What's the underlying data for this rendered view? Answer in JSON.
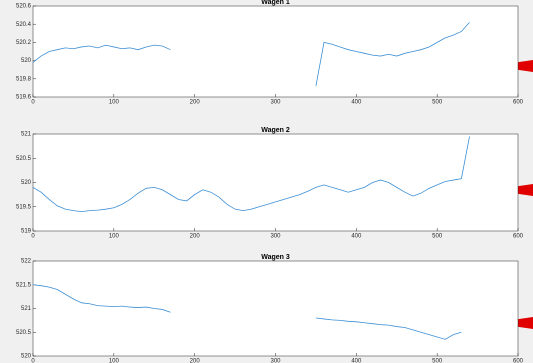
{
  "chart_data": [
    {
      "type": "line",
      "title": "Wagen 1",
      "x": [
        0,
        10,
        20,
        30,
        40,
        50,
        60,
        70,
        80,
        90,
        100,
        110,
        120,
        130,
        140,
        150,
        160,
        170,
        180,
        190,
        200,
        210,
        220,
        230,
        240,
        250,
        260,
        270,
        280,
        290,
        300,
        310,
        320,
        330,
        340,
        350,
        360,
        370,
        380,
        390,
        400,
        410,
        420,
        430,
        440,
        450,
        460,
        470,
        480,
        490,
        500,
        510,
        520,
        530,
        540
      ],
      "series": [
        {
          "color": "#3d8fd4",
          "values": [
            519.98,
            520.05,
            520.1,
            520.12,
            520.14,
            520.13,
            520.15,
            520.16,
            520.14,
            520.17,
            520.15,
            520.13,
            520.14,
            520.12,
            520.15,
            520.17,
            520.16,
            520.12,
            null,
            null,
            null,
            null,
            null,
            null,
            null,
            null,
            null,
            null,
            null,
            null,
            null,
            null,
            null,
            null,
            null,
            519.72,
            520.2,
            520.18,
            520.15,
            520.12,
            520.1,
            520.08,
            520.06,
            520.05,
            520.07,
            520.05,
            520.08,
            520.1,
            520.12,
            520.15,
            520.2,
            520.25,
            520.28,
            520.32,
            520.42
          ]
        }
      ],
      "xlim": [
        0,
        600
      ],
      "xticks": [
        0,
        100,
        200,
        300,
        400,
        500,
        600
      ],
      "ylim": [
        519.6,
        520.6
      ],
      "yticks": [
        519.6,
        519.8,
        520,
        520.2,
        520.4,
        520.6
      ]
    },
    {
      "type": "line",
      "title": "Wagen 2",
      "x": [
        0,
        10,
        20,
        30,
        40,
        50,
        60,
        70,
        80,
        90,
        100,
        110,
        120,
        130,
        140,
        150,
        160,
        170,
        180,
        190,
        200,
        210,
        220,
        230,
        240,
        250,
        260,
        270,
        280,
        290,
        300,
        310,
        320,
        330,
        340,
        350,
        360,
        370,
        380,
        390,
        400,
        410,
        420,
        430,
        440,
        450,
        460,
        470,
        480,
        490,
        500,
        510,
        520,
        530,
        540
      ],
      "series": [
        {
          "color": "#3d8fd4",
          "values": [
            519.9,
            519.8,
            519.65,
            519.52,
            519.45,
            519.42,
            519.4,
            519.42,
            519.43,
            519.45,
            519.48,
            519.55,
            519.65,
            519.78,
            519.88,
            519.9,
            519.85,
            519.75,
            519.65,
            519.62,
            519.75,
            519.85,
            519.8,
            519.7,
            519.55,
            519.45,
            519.42,
            519.45,
            519.5,
            519.55,
            519.6,
            519.65,
            519.7,
            519.75,
            519.82,
            519.9,
            519.95,
            519.9,
            519.85,
            519.8,
            519.85,
            519.9,
            520.0,
            520.05,
            520.0,
            519.9,
            519.8,
            519.72,
            519.78,
            519.88,
            519.95,
            520.02,
            520.05,
            520.08,
            520.95
          ]
        }
      ],
      "xlim": [
        0,
        600
      ],
      "xticks": [
        0,
        100,
        200,
        300,
        400,
        500,
        600
      ],
      "ylim": [
        519,
        521
      ],
      "yticks": [
        519,
        519.5,
        520,
        520.5,
        521
      ]
    },
    {
      "type": "line",
      "title": "Wagen 3",
      "x": [
        0,
        10,
        20,
        30,
        40,
        50,
        60,
        70,
        80,
        90,
        100,
        110,
        120,
        130,
        140,
        150,
        160,
        170,
        180,
        190,
        200,
        210,
        220,
        230,
        240,
        250,
        260,
        270,
        280,
        290,
        300,
        310,
        320,
        330,
        340,
        350,
        360,
        370,
        380,
        390,
        400,
        410,
        420,
        430,
        440,
        450,
        460,
        470,
        480,
        490,
        500,
        510,
        520,
        530,
        540
      ],
      "series": [
        {
          "color": "#3d8fd4",
          "values": [
            521.5,
            521.48,
            521.45,
            521.4,
            521.3,
            521.2,
            521.12,
            521.1,
            521.06,
            521.05,
            521.04,
            521.05,
            521.03,
            521.02,
            521.03,
            521.0,
            520.98,
            520.92,
            null,
            null,
            null,
            null,
            null,
            null,
            null,
            null,
            null,
            null,
            null,
            null,
            null,
            null,
            null,
            null,
            null,
            520.8,
            520.78,
            520.76,
            520.75,
            520.73,
            520.72,
            520.7,
            520.68,
            520.66,
            520.65,
            520.62,
            520.6,
            520.55,
            520.5,
            520.45,
            520.4,
            520.35,
            520.45,
            520.5,
            null
          ]
        }
      ],
      "xlim": [
        0,
        600
      ],
      "xticks": [
        0,
        100,
        200,
        300,
        400,
        500,
        600
      ],
      "ylim": [
        520,
        522
      ],
      "yticks": [
        520,
        520.5,
        521,
        521.5,
        522
      ]
    }
  ]
}
